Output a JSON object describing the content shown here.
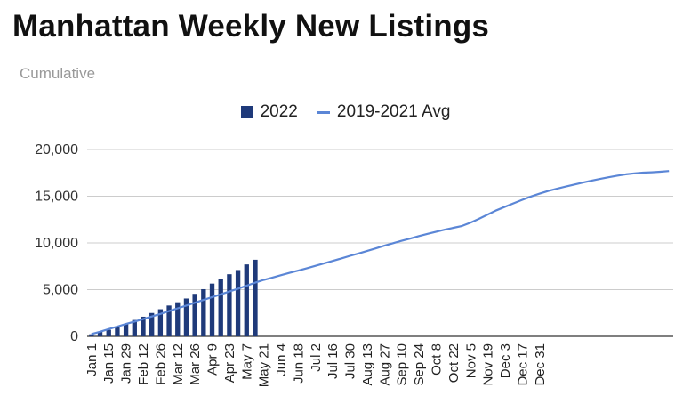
{
  "chart_data": {
    "type": "bar",
    "title": "Manhattan Weekly New Listings",
    "subtitle": "Cumulative",
    "xlabel": "",
    "ylabel": "",
    "ylim": [
      0,
      20000
    ],
    "yticks": [
      "0",
      "5,000",
      "10,000",
      "15,000",
      "20,000"
    ],
    "grid": true,
    "legend_position": "top-center",
    "x_tick_labels": [
      "Jan 1",
      "Jan 15",
      "Jan 29",
      "Feb 12",
      "Feb 26",
      "Mar 12",
      "Mar 26",
      "Apr 9",
      "Apr 23",
      "May 7",
      "May 21",
      "Jun 4",
      "Jun 18",
      "Jul 2",
      "Jul 16",
      "Jul 30",
      "Aug 13",
      "Aug 27",
      "Sep 10",
      "Sep 24",
      "Oct 8",
      "Oct 22",
      "Nov 5",
      "Nov 19",
      "Dec 3",
      "Dec 17",
      "Dec 31"
    ],
    "series": [
      {
        "name": "2022",
        "kind": "bar",
        "color": "#1f3a7a",
        "values": [
          220,
          480,
          700,
          950,
          1300,
          1750,
          2100,
          2500,
          2900,
          3300,
          3650,
          4050,
          4550,
          5050,
          5650,
          6150,
          6650,
          7100,
          7700,
          8200
        ]
      },
      {
        "name": "2019-2021 Avg",
        "kind": "line",
        "color": "#5b86d6",
        "values": [
          250,
          500,
          780,
          1050,
          1320,
          1580,
          1850,
          2120,
          2400,
          2700,
          3000,
          3300,
          3600,
          3900,
          4200,
          4500,
          4800,
          5100,
          5420,
          5750,
          6050,
          6300,
          6550,
          6800,
          7050,
          7300,
          7550,
          7820,
          8080,
          8340,
          8620,
          8880,
          9150,
          9420,
          9700,
          9970,
          10230,
          10480,
          10730,
          10970,
          11200,
          11420,
          11620,
          11820,
          12180,
          12600,
          13050,
          13500,
          13880,
          14250,
          14620,
          14970,
          15280,
          15560,
          15800,
          16030,
          16250,
          16460,
          16660,
          16850,
          17030,
          17200,
          17340,
          17450,
          17520,
          17560,
          17620,
          17700
        ]
      }
    ]
  }
}
